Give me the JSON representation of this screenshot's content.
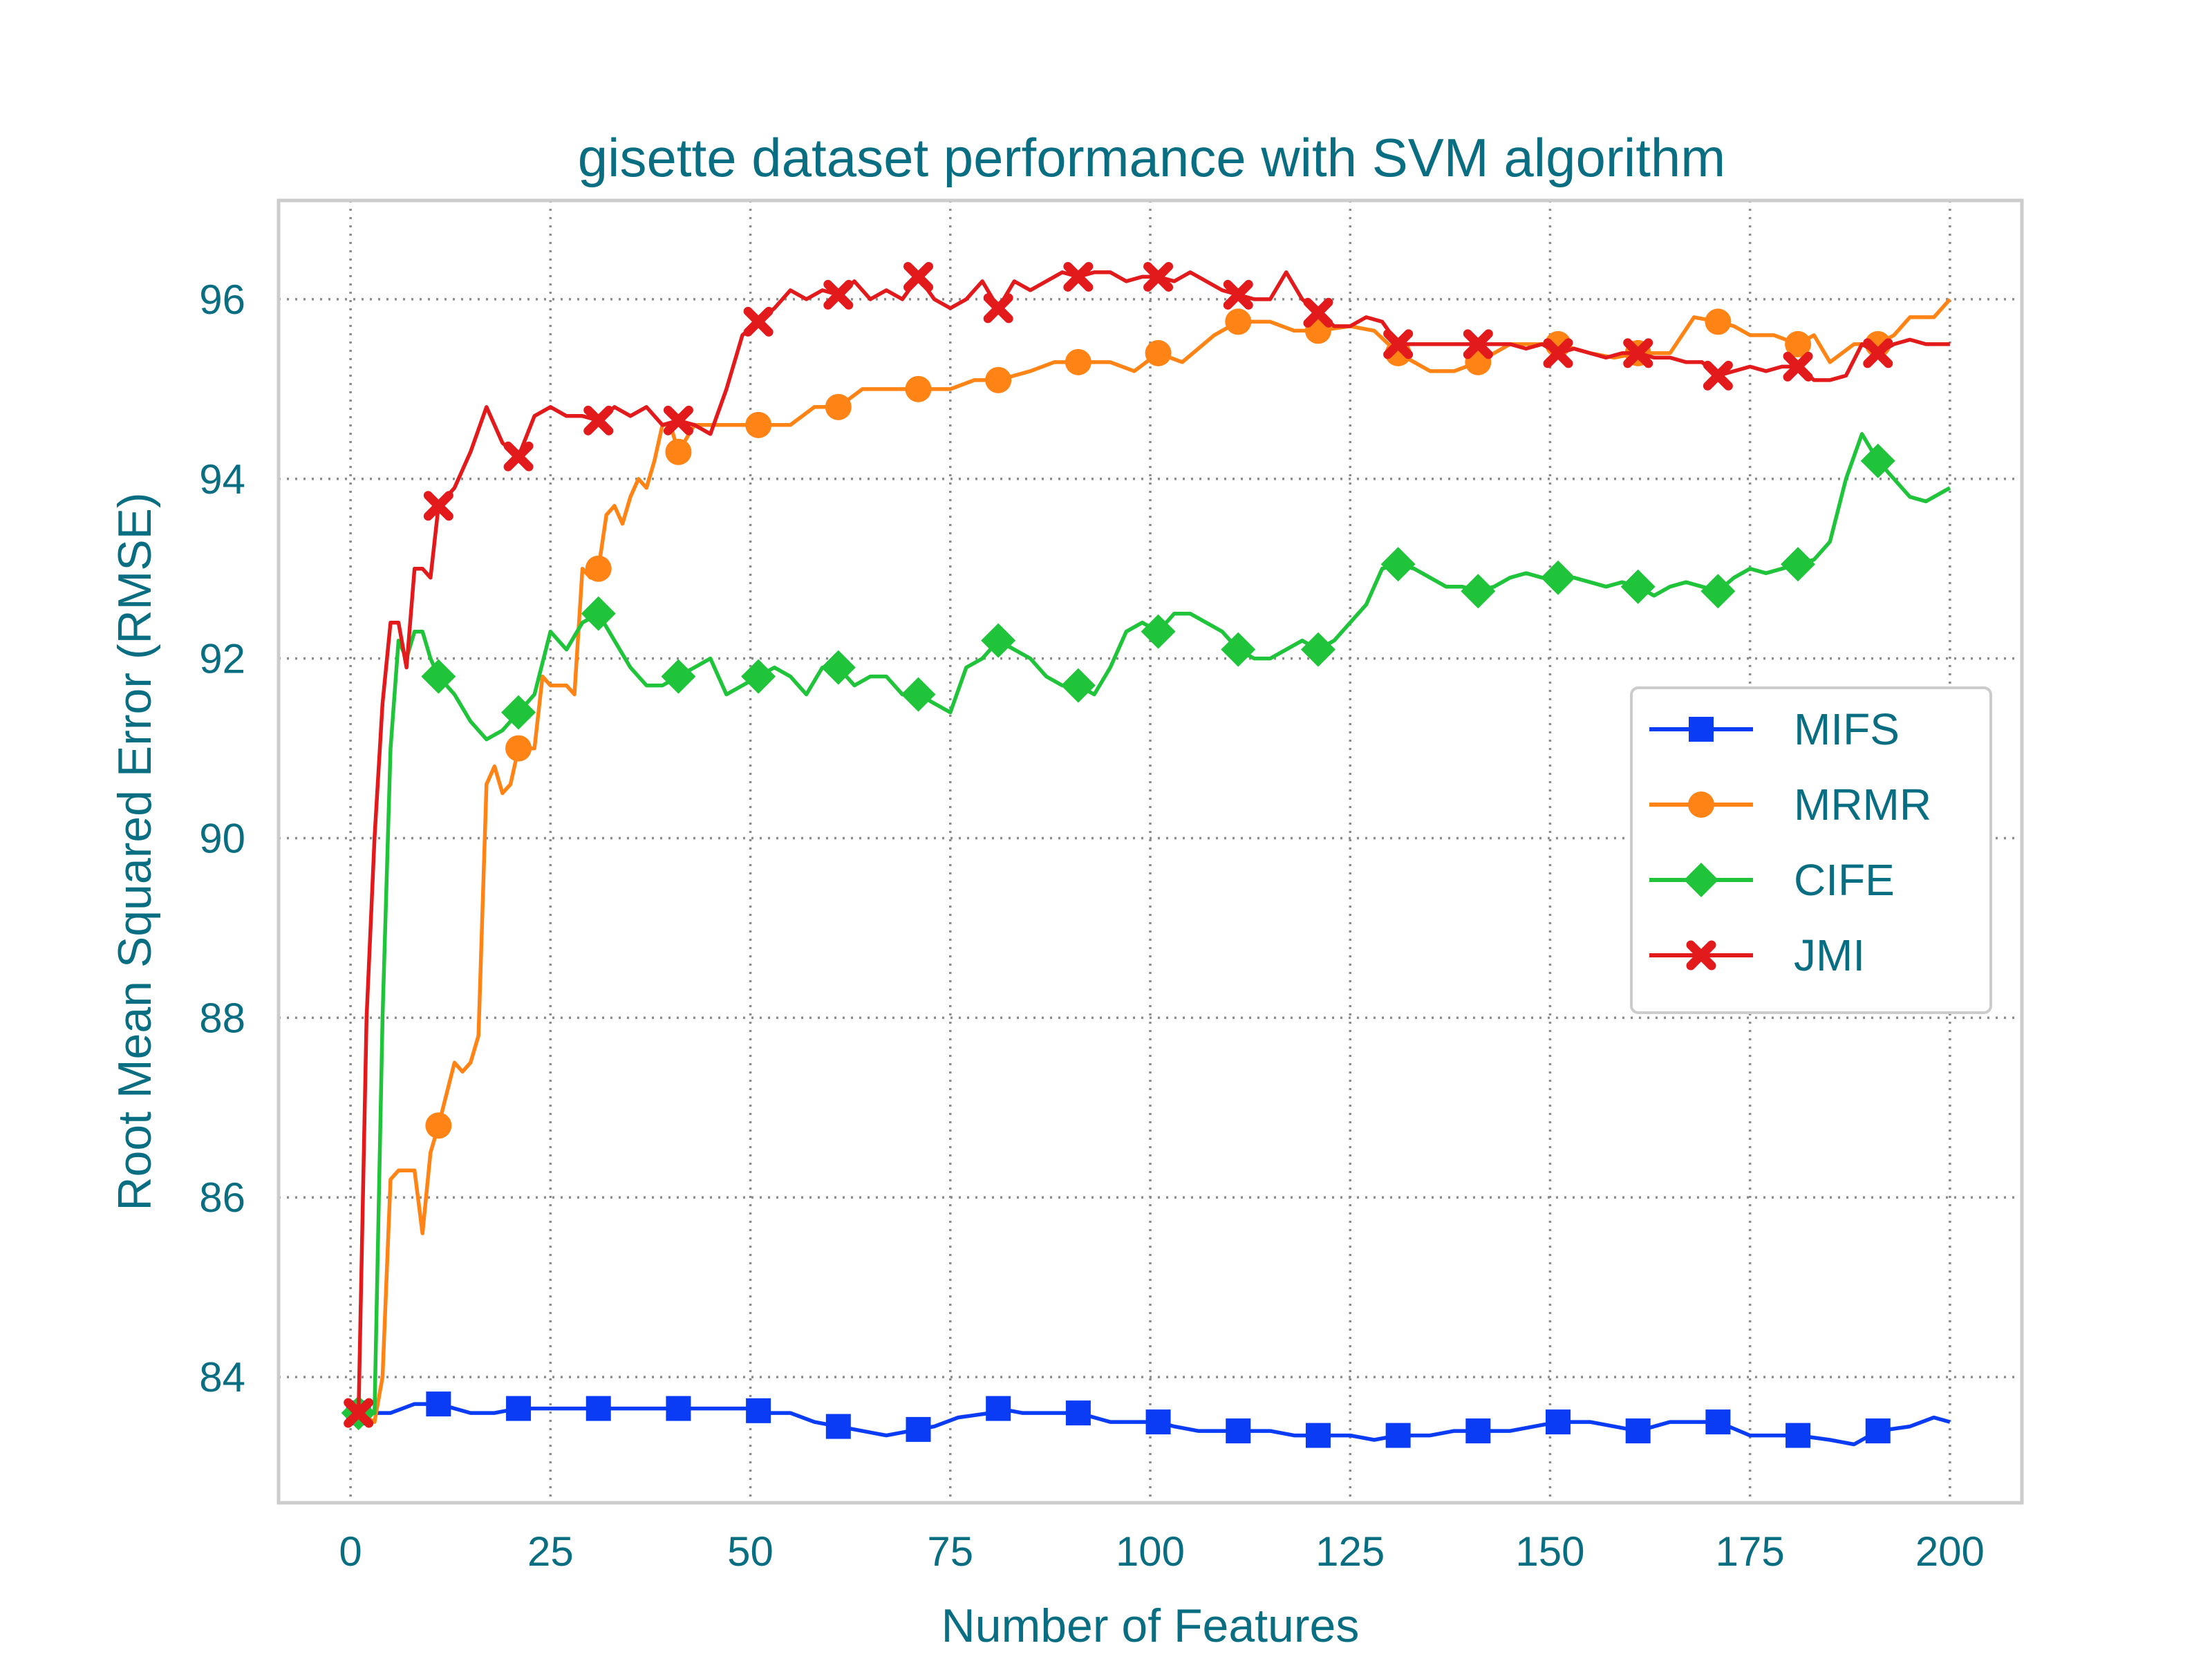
{
  "chart_data": {
    "type": "line",
    "title": "gisette dataset performance with SVM algorithm",
    "xlabel": "Number of Features",
    "ylabel": "Root Mean Squared Error (RMSE)",
    "xlim": [
      -9,
      209
    ],
    "ylim": [
      82.6,
      97.1
    ],
    "xticks": [
      0,
      25,
      50,
      75,
      100,
      125,
      150,
      175,
      200
    ],
    "yticks": [
      84,
      86,
      88,
      90,
      92,
      94,
      96
    ],
    "grid": true,
    "legend_position": "center-right",
    "text_color": "#0a6e82",
    "series": [
      {
        "name": "MIFS",
        "color": "#0b3cf5",
        "marker": "square",
        "x": [
          1,
          3,
          5,
          8,
          11,
          15,
          18,
          21,
          30,
          40,
          50,
          52,
          55,
          58,
          61,
          64,
          67,
          70,
          73,
          76,
          80,
          81,
          84,
          88,
          90,
          91,
          95,
          98,
          101,
          103,
          106,
          110,
          111,
          115,
          118,
          121,
          125,
          128,
          131,
          135,
          138,
          141,
          145,
          148,
          151,
          155,
          158,
          161,
          165,
          168,
          171,
          175,
          178,
          181,
          185,
          188,
          191,
          195,
          198,
          200
        ],
        "y": [
          83.6,
          83.6,
          83.6,
          83.7,
          83.7,
          83.6,
          83.6,
          83.65,
          83.65,
          83.65,
          83.65,
          83.6,
          83.6,
          83.5,
          83.45,
          83.4,
          83.35,
          83.4,
          83.45,
          83.55,
          83.6,
          83.65,
          83.6,
          83.6,
          83.6,
          83.6,
          83.5,
          83.5,
          83.5,
          83.45,
          83.4,
          83.4,
          83.4,
          83.4,
          83.35,
          83.35,
          83.35,
          83.3,
          83.35,
          83.35,
          83.4,
          83.4,
          83.4,
          83.45,
          83.5,
          83.5,
          83.45,
          83.4,
          83.5,
          83.5,
          83.5,
          83.35,
          83.35,
          83.35,
          83.3,
          83.25,
          83.4,
          83.45,
          83.55,
          83.5
        ],
        "markers": [
          1,
          11,
          21,
          31,
          41,
          51,
          61,
          71,
          81,
          91,
          101,
          111,
          121,
          131,
          141,
          151,
          161,
          171,
          181,
          191
        ]
      },
      {
        "name": "MRMR",
        "color": "#ff8315",
        "marker": "circle",
        "x": [
          1,
          3,
          4,
          5,
          6,
          8,
          9,
          10,
          11,
          13,
          14,
          15,
          16,
          17,
          18,
          19,
          20,
          21,
          22,
          23,
          24,
          25,
          27,
          28,
          29,
          30,
          31,
          32,
          33,
          34,
          35,
          36,
          37,
          38,
          39,
          40,
          41,
          43,
          45,
          48,
          51,
          55,
          58,
          61,
          64,
          67,
          71,
          75,
          78,
          81,
          85,
          88,
          91,
          95,
          98,
          101,
          104,
          108,
          111,
          115,
          118,
          121,
          125,
          128,
          131,
          135,
          138,
          141,
          145,
          148,
          151,
          155,
          158,
          161,
          165,
          168,
          171,
          173,
          175,
          178,
          181,
          183,
          185,
          188,
          191,
          193,
          195,
          198,
          200
        ],
        "y": [
          83.6,
          83.5,
          84.0,
          86.2,
          86.3,
          86.3,
          85.6,
          86.5,
          86.8,
          87.5,
          87.4,
          87.5,
          87.8,
          90.6,
          90.8,
          90.5,
          90.6,
          91.0,
          91.0,
          91.0,
          91.8,
          91.7,
          91.7,
          91.6,
          93.0,
          92.9,
          93.0,
          93.6,
          93.7,
          93.5,
          93.8,
          94.0,
          93.9,
          94.2,
          94.6,
          94.6,
          94.3,
          94.6,
          94.6,
          94.6,
          94.6,
          94.6,
          94.8,
          94.8,
          95.0,
          95.0,
          95.0,
          95.0,
          95.1,
          95.1,
          95.2,
          95.3,
          95.3,
          95.3,
          95.2,
          95.4,
          95.3,
          95.6,
          95.75,
          95.75,
          95.65,
          95.65,
          95.7,
          95.65,
          95.4,
          95.2,
          95.2,
          95.3,
          95.5,
          95.5,
          95.5,
          95.4,
          95.35,
          95.4,
          95.4,
          95.8,
          95.75,
          95.7,
          95.6,
          95.6,
          95.5,
          95.6,
          95.3,
          95.5,
          95.5,
          95.6,
          95.8,
          95.8,
          96.0
        ],
        "markers": [
          1,
          11,
          21,
          31,
          41,
          51,
          61,
          71,
          81,
          91,
          101,
          111,
          121,
          131,
          141,
          151,
          161,
          171,
          181,
          191
        ]
      },
      {
        "name": "CIFE",
        "color": "#1fc43a",
        "marker": "diamond",
        "x": [
          1,
          3,
          4,
          5,
          6,
          7,
          8,
          9,
          10,
          11,
          13,
          15,
          17,
          19,
          21,
          23,
          25,
          27,
          29,
          31,
          33,
          35,
          37,
          39,
          41,
          43,
          45,
          47,
          49,
          51,
          53,
          55,
          57,
          59,
          61,
          63,
          65,
          67,
          69,
          71,
          73,
          75,
          77,
          79,
          81,
          83,
          85,
          87,
          89,
          91,
          93,
          95,
          97,
          99,
          101,
          103,
          105,
          107,
          109,
          111,
          113,
          115,
          117,
          119,
          121,
          123,
          125,
          127,
          129,
          131,
          133,
          135,
          137,
          139,
          141,
          143,
          145,
          147,
          149,
          151,
          153,
          155,
          157,
          159,
          161,
          163,
          165,
          167,
          169,
          171,
          173,
          175,
          177,
          179,
          181,
          183,
          185,
          187,
          189,
          191,
          193,
          195,
          197,
          200
        ],
        "y": [
          83.6,
          83.6,
          88.0,
          91.0,
          92.2,
          92.0,
          92.3,
          92.3,
          92.0,
          91.8,
          91.6,
          91.3,
          91.1,
          91.2,
          91.4,
          91.6,
          92.3,
          92.1,
          92.4,
          92.5,
          92.2,
          91.9,
          91.7,
          91.7,
          91.8,
          91.9,
          92.0,
          91.6,
          91.7,
          91.8,
          91.9,
          91.8,
          91.6,
          91.9,
          91.9,
          91.7,
          91.8,
          91.8,
          91.6,
          91.6,
          91.5,
          91.4,
          91.9,
          92.0,
          92.2,
          92.1,
          92.0,
          91.8,
          91.7,
          91.7,
          91.6,
          91.9,
          92.3,
          92.4,
          92.3,
          92.5,
          92.5,
          92.4,
          92.3,
          92.1,
          92.0,
          92.0,
          92.1,
          92.2,
          92.1,
          92.2,
          92.4,
          92.6,
          93.0,
          93.05,
          93.0,
          92.9,
          92.8,
          92.8,
          92.75,
          92.8,
          92.9,
          92.95,
          92.9,
          92.9,
          92.9,
          92.85,
          92.8,
          92.85,
          92.8,
          92.7,
          92.8,
          92.85,
          92.8,
          92.75,
          92.9,
          93.0,
          92.95,
          93.0,
          93.05,
          93.1,
          93.3,
          94.0,
          94.5,
          94.2,
          94.0,
          93.8,
          93.75,
          93.9
        ],
        "markers": [
          1,
          11,
          21,
          31,
          41,
          51,
          61,
          71,
          81,
          91,
          101,
          111,
          121,
          131,
          141,
          151,
          161,
          171,
          181,
          191
        ]
      },
      {
        "name": "JMI",
        "color": "#e31a1c",
        "marker": "x",
        "x": [
          1,
          2,
          3,
          4,
          5,
          6,
          7,
          8,
          9,
          10,
          11,
          13,
          15,
          17,
          19,
          21,
          23,
          25,
          27,
          29,
          31,
          33,
          35,
          37,
          39,
          41,
          43,
          45,
          47,
          49,
          51,
          53,
          55,
          57,
          59,
          61,
          63,
          65,
          67,
          69,
          71,
          73,
          75,
          77,
          79,
          81,
          83,
          85,
          87,
          89,
          91,
          93,
          95,
          97,
          99,
          101,
          103,
          105,
          107,
          109,
          111,
          113,
          115,
          117,
          119,
          121,
          123,
          125,
          127,
          129,
          131,
          133,
          135,
          137,
          139,
          141,
          143,
          145,
          147,
          149,
          151,
          153,
          155,
          157,
          159,
          161,
          163,
          165,
          167,
          169,
          171,
          173,
          175,
          177,
          179,
          181,
          183,
          185,
          187,
          189,
          191,
          193,
          195,
          197,
          200
        ],
        "y": [
          83.6,
          88.0,
          90.0,
          91.5,
          92.4,
          92.4,
          91.9,
          93.0,
          93.0,
          92.9,
          93.7,
          93.9,
          94.3,
          94.8,
          94.4,
          94.25,
          94.7,
          94.8,
          94.7,
          94.7,
          94.65,
          94.8,
          94.7,
          94.8,
          94.6,
          94.65,
          94.6,
          94.5,
          95.0,
          95.6,
          95.75,
          95.9,
          96.1,
          96.0,
          96.1,
          96.05,
          96.2,
          96.0,
          96.1,
          96.0,
          96.25,
          96.0,
          95.9,
          96.0,
          96.2,
          95.9,
          96.2,
          96.1,
          96.2,
          96.3,
          96.25,
          96.3,
          96.3,
          96.2,
          96.25,
          96.25,
          96.2,
          96.3,
          96.2,
          96.1,
          96.05,
          96.0,
          96.0,
          96.3,
          96.0,
          95.85,
          95.7,
          95.7,
          95.8,
          95.75,
          95.5,
          95.5,
          95.5,
          95.5,
          95.5,
          95.5,
          95.5,
          95.5,
          95.45,
          95.5,
          95.4,
          95.45,
          95.4,
          95.35,
          95.4,
          95.4,
          95.35,
          95.35,
          95.3,
          95.3,
          95.15,
          95.2,
          95.25,
          95.2,
          95.25,
          95.25,
          95.1,
          95.1,
          95.15,
          95.5,
          95.4,
          95.5,
          95.55,
          95.5,
          95.5
        ],
        "markers": [
          1,
          11,
          21,
          31,
          41,
          51,
          61,
          71,
          81,
          91,
          101,
          111,
          121,
          131,
          141,
          151,
          161,
          171,
          181,
          191
        ]
      }
    ]
  }
}
